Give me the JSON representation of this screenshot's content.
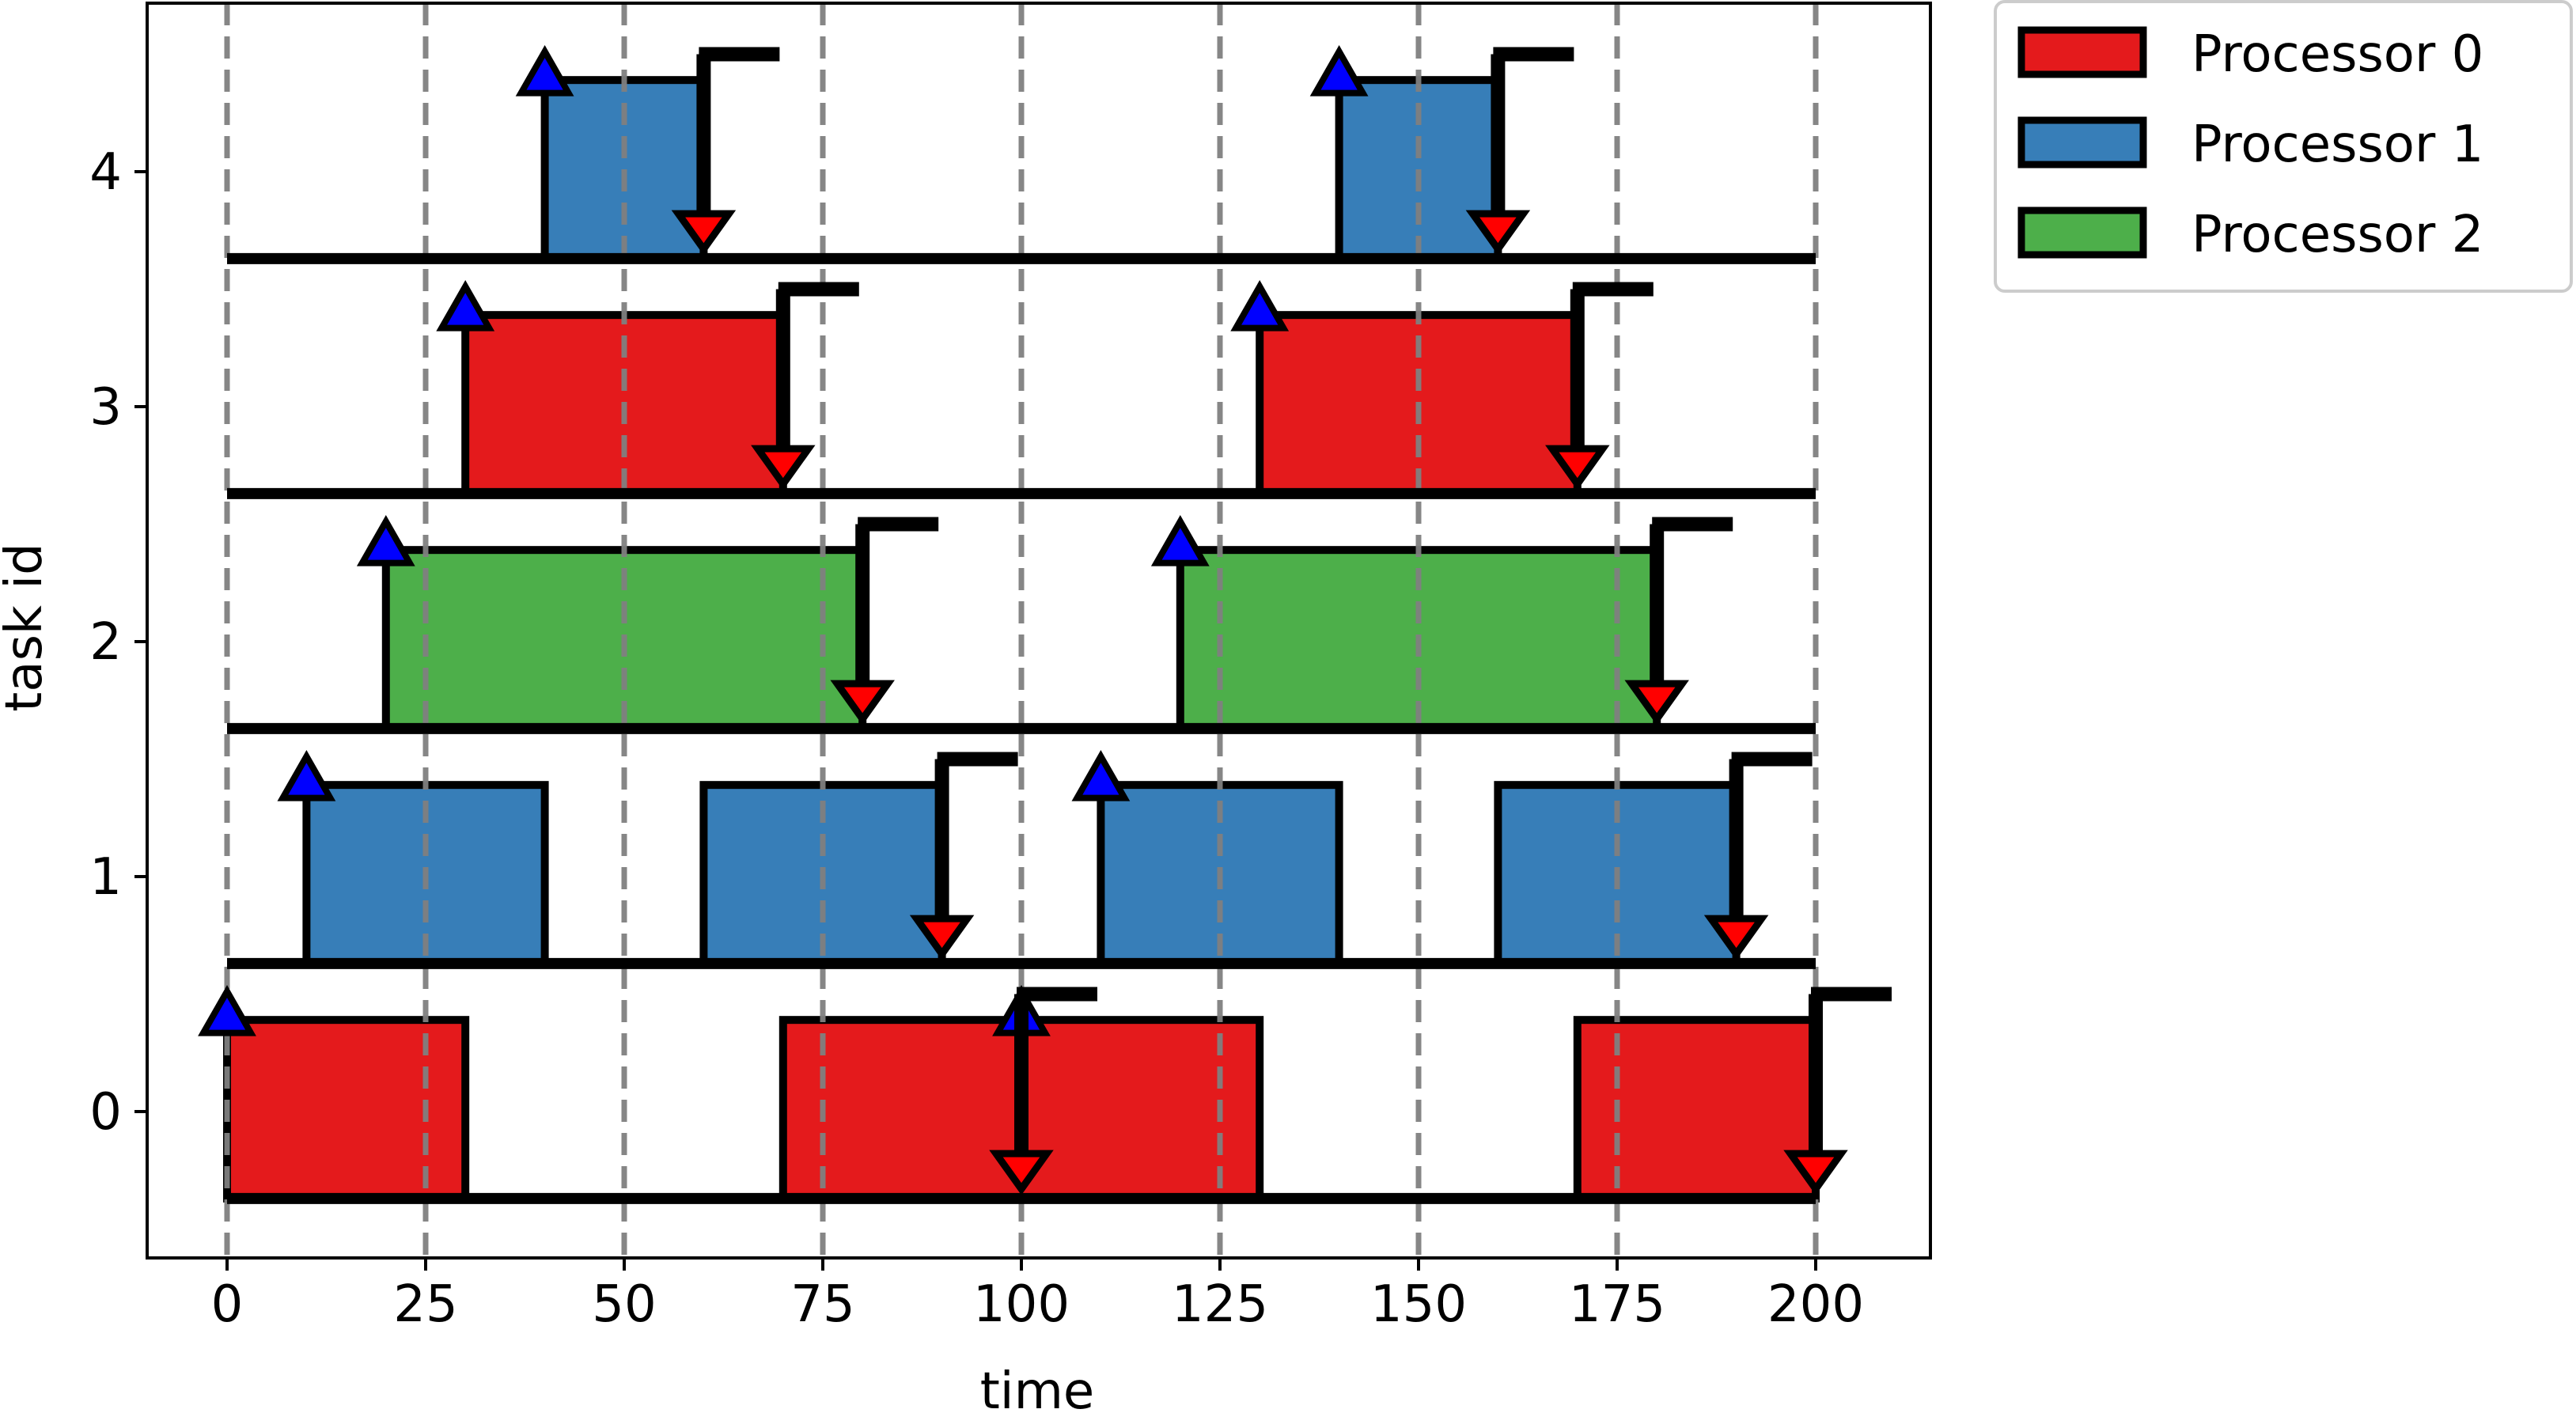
{
  "chart_data": {
    "type": "gantt",
    "xlabel": "time",
    "ylabel": "task id",
    "xlim": [
      -10,
      215
    ],
    "ylim": [
      -0.62,
      4.72
    ],
    "xticks": [
      0,
      25,
      50,
      75,
      100,
      125,
      150,
      175,
      200
    ],
    "yticks": [
      0,
      1,
      2,
      3,
      4
    ],
    "grid": "dashed vertical lines at x ticks",
    "legend_position": "outside top-right",
    "colors": {
      "processor_0": "#e41a1c",
      "processor_1": "#377eb8",
      "processor_2": "#4daf4a",
      "release_marker": "#0000ff",
      "deadline_marker": "#ff0000",
      "grid": "#808080"
    },
    "series": [
      {
        "name": "Processor 0",
        "color": "#e41a1c"
      },
      {
        "name": "Processor 1",
        "color": "#377eb8"
      },
      {
        "name": "Processor 2",
        "color": "#4daf4a"
      }
    ],
    "timeline_end": 200,
    "tasks": [
      {
        "id": 0,
        "executions": [
          {
            "start": 0,
            "end": 30,
            "processor": 0
          },
          {
            "start": 70,
            "end": 130,
            "processor": 0
          },
          {
            "start": 170,
            "end": 200,
            "processor": 0
          }
        ],
        "releases": [
          0,
          100
        ],
        "deadlines": [
          100,
          200
        ]
      },
      {
        "id": 1,
        "executions": [
          {
            "start": 10,
            "end": 40,
            "processor": 1
          },
          {
            "start": 60,
            "end": 90,
            "processor": 1
          },
          {
            "start": 110,
            "end": 140,
            "processor": 1
          },
          {
            "start": 160,
            "end": 190,
            "processor": 1
          }
        ],
        "releases": [
          10,
          110
        ],
        "deadlines": [
          90,
          190
        ]
      },
      {
        "id": 2,
        "executions": [
          {
            "start": 20,
            "end": 80,
            "processor": 2
          },
          {
            "start": 120,
            "end": 180,
            "processor": 2
          }
        ],
        "releases": [
          20,
          120
        ],
        "deadlines": [
          80,
          180
        ]
      },
      {
        "id": 3,
        "executions": [
          {
            "start": 30,
            "end": 70,
            "processor": 0
          },
          {
            "start": 130,
            "end": 170,
            "processor": 0
          }
        ],
        "releases": [
          30,
          130
        ],
        "deadlines": [
          70,
          170
        ]
      },
      {
        "id": 4,
        "executions": [
          {
            "start": 40,
            "end": 60,
            "processor": 1
          },
          {
            "start": 140,
            "end": 160,
            "processor": 1
          }
        ],
        "releases": [
          40,
          140
        ],
        "deadlines": [
          60,
          160
        ]
      }
    ]
  }
}
